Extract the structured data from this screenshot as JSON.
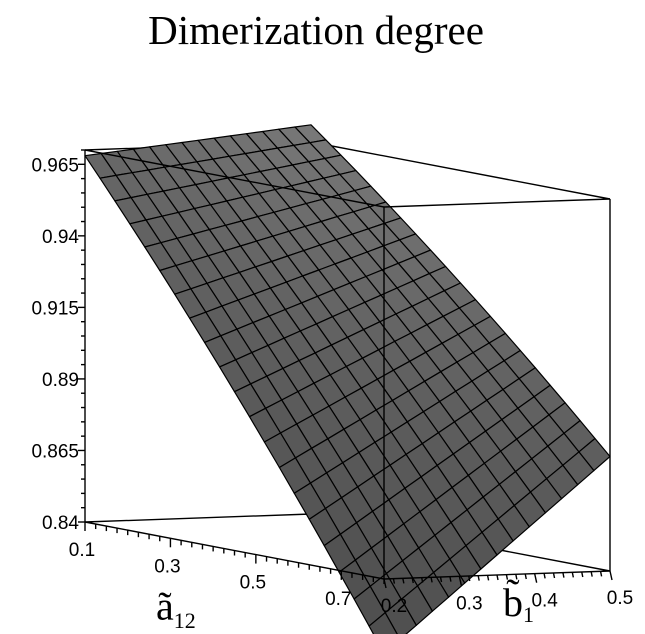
{
  "chart_data": {
    "type": "surface3d",
    "title": "Dimerization degree",
    "x_axis": {
      "label_base": "ã",
      "label_sub": "12",
      "range": [
        0.1,
        0.8
      ],
      "tick_labels": [
        "0.1",
        "0.3",
        "0.5",
        "0.7"
      ],
      "tick_values": [
        0.1,
        0.3,
        0.5,
        0.7
      ]
    },
    "y_axis": {
      "label_base": "b̃",
      "label_sub": "1",
      "range": [
        0.2,
        0.5
      ],
      "tick_labels": [
        "0.2",
        "0.3",
        "0.4",
        "0.5"
      ],
      "tick_values": [
        0.2,
        0.3,
        0.4,
        0.5
      ]
    },
    "z_axis": {
      "label": "",
      "range": [
        0.84,
        0.97
      ],
      "tick_labels": [
        "0.84",
        "0.865",
        "0.89",
        "0.915",
        "0.94",
        "0.965"
      ],
      "tick_values": [
        0.84,
        0.865,
        0.89,
        0.915,
        0.94,
        0.965
      ]
    },
    "grid": false,
    "surface_color": "#8c8c8c",
    "corner_values": [
      {
        "x": 0.1,
        "y": 0.2,
        "z": 0.968
      },
      {
        "x": 0.1,
        "y": 0.5,
        "z": 0.976
      },
      {
        "x": 0.8,
        "y": 0.2,
        "z": 0.814
      },
      {
        "x": 0.8,
        "y": 0.5,
        "z": 0.88
      }
    ]
  }
}
